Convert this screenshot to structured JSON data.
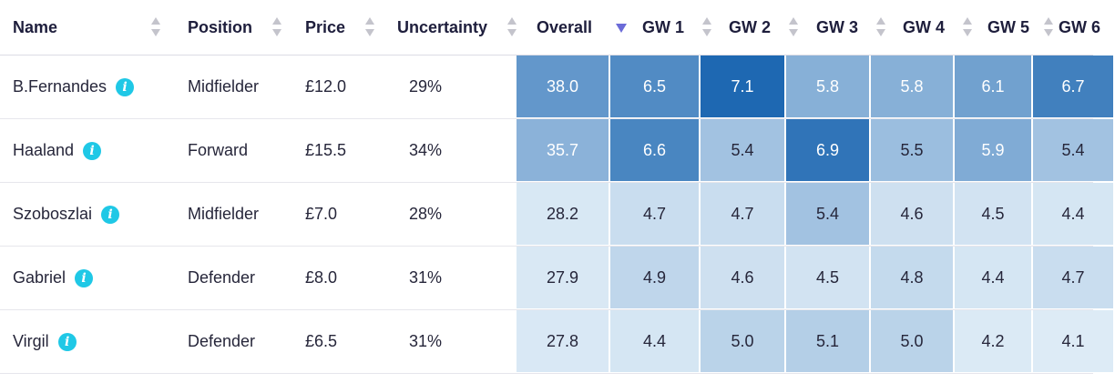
{
  "columns": [
    {
      "key": "name",
      "label": "Name"
    },
    {
      "key": "position",
      "label": "Position"
    },
    {
      "key": "price",
      "label": "Price"
    },
    {
      "key": "uncertainty",
      "label": "Uncertainty"
    },
    {
      "key": "overall",
      "label": "Overall"
    },
    {
      "key": "gw1",
      "label": "GW 1"
    },
    {
      "key": "gw2",
      "label": "GW 2"
    },
    {
      "key": "gw3",
      "label": "GW 3"
    },
    {
      "key": "gw4",
      "label": "GW 4"
    },
    {
      "key": "gw5",
      "label": "GW 5"
    },
    {
      "key": "gw6",
      "label": "GW 6"
    }
  ],
  "sort": {
    "column": "overall",
    "direction": "descending"
  },
  "rows": [
    {
      "name": "B.Fernandes",
      "position": "Midfielder",
      "price": "£12.0",
      "uncertainty": "29%",
      "overall": "38.0",
      "gw": [
        "6.5",
        "7.1",
        "5.8",
        "5.8",
        "6.1",
        "6.7"
      ]
    },
    {
      "name": "Haaland",
      "position": "Forward",
      "price": "£15.5",
      "uncertainty": "34%",
      "overall": "35.7",
      "gw": [
        "6.6",
        "5.4",
        "6.9",
        "5.5",
        "5.9",
        "5.4"
      ]
    },
    {
      "name": "Szoboszlai",
      "position": "Midfielder",
      "price": "£7.0",
      "uncertainty": "28%",
      "overall": "28.2",
      "gw": [
        "4.7",
        "4.7",
        "5.4",
        "4.6",
        "4.5",
        "4.4"
      ]
    },
    {
      "name": "Gabriel",
      "position": "Defender",
      "price": "£8.0",
      "uncertainty": "31%",
      "overall": "27.9",
      "gw": [
        "4.9",
        "4.6",
        "4.5",
        "4.8",
        "4.4",
        "4.7"
      ]
    },
    {
      "name": "Virgil",
      "position": "Defender",
      "price": "£6.5",
      "uncertainty": "31%",
      "overall": "27.8",
      "gw": [
        "4.4",
        "5.0",
        "5.1",
        "5.0",
        "4.2",
        "4.1"
      ]
    }
  ],
  "info_icon": "info-icon",
  "colors": {
    "accent_info": "#1fc8e6",
    "sort_active": "#6b6bd8",
    "heat_light": "#e3eff8",
    "heat_dark": "#1e68b2"
  }
}
